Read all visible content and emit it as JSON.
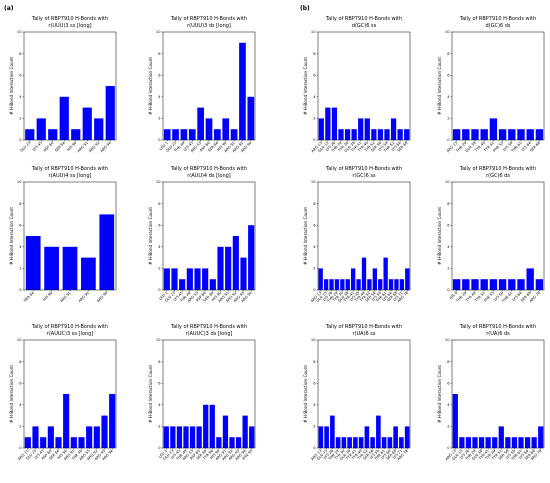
{
  "panels": [
    "(a)",
    "(b)"
  ],
  "chart_data": [
    {
      "type": "bar",
      "title": "Tally of RBP7910 H-Bonds with",
      "subtitle": "r(UUU)3 ss [long]",
      "ylabel": "# H-Bond Interaction Count",
      "color": "#0000ff",
      "ylim": [
        0,
        10
      ],
      "yticks": [
        0,
        2,
        4,
        6,
        8,
        10
      ],
      "categories": [
        "GLU 23",
        "LYS 45",
        "ASP 60",
        "SER 84",
        "HIS 90",
        "ARG 91",
        "ARG 92",
        "ARG 94"
      ],
      "values": [
        1,
        2,
        1,
        4,
        1,
        3,
        2,
        5
      ]
    },
    {
      "type": "bar",
      "title": "Tally of RBP7910 H-Bonds with",
      "subtitle": "r(UUU)3 ds [long]",
      "ylabel": "# H-Bond Interaction Count",
      "color": "#0000ff",
      "ylim": [
        0,
        10
      ],
      "yticks": [
        0,
        2,
        4,
        6,
        8,
        10
      ],
      "categories": [
        "LEU 1",
        "GLU 23",
        "THR 49",
        "LYS 45",
        "ARG 55",
        "ASP 60",
        "SER 84",
        "HIS 90",
        "ARG 91",
        "ARG 92",
        "ARG 94"
      ],
      "values": [
        1,
        1,
        1,
        1,
        3,
        2,
        1,
        2,
        1,
        9,
        4
      ]
    },
    {
      "type": "bar",
      "title": "Tally of RBP7910 H-Bonds with",
      "subtitle": "d(GC)6 ss",
      "ylabel": "# H-Bond Interaction Count",
      "color": "#0000ff",
      "ylim": [
        0,
        10
      ],
      "yticks": [
        0,
        2,
        4,
        6,
        8,
        10
      ],
      "categories": [
        "ARG 13",
        "GLN 15",
        "LYS 26",
        "THR 29",
        "TYR 30",
        "GLN 38",
        "TYR 41",
        "TYR 49",
        "TYR 52",
        "SER 56",
        "LYS 59",
        "THR 61",
        "LYS 64",
        "SER 68"
      ],
      "values": [
        2,
        3,
        3,
        1,
        1,
        1,
        2,
        2,
        1,
        1,
        1,
        2,
        1,
        1
      ]
    },
    {
      "type": "bar",
      "title": "Tally of RBP7910 H-Bonds with",
      "subtitle": "d(GC)6 ds",
      "ylabel": "# H-Bond Interaction Count",
      "color": "#0000ff",
      "ylim": [
        0,
        10
      ],
      "yticks": [
        0,
        2,
        4,
        6,
        8,
        10
      ],
      "categories": [
        "ARG 13",
        "THR 29",
        "GLN 38",
        "TYR 49",
        "TYR 52",
        "PHE 55",
        "LYS 59",
        "THR 61",
        "LYS 64",
        "SER 68"
      ],
      "values": [
        1,
        1,
        1,
        1,
        2,
        1,
        1,
        1,
        1,
        1
      ]
    },
    {
      "type": "bar",
      "title": "Tally of RBP7910 H-Bonds with",
      "subtitle": "r(AUU)4 ss [long]",
      "ylabel": "# H-Bond Interaction Count",
      "color": "#0000ff",
      "ylim": [
        0,
        10
      ],
      "yticks": [
        0,
        2,
        4,
        6,
        8,
        10
      ],
      "categories": [
        "SER 84",
        "HIS 90",
        "ARG 91",
        "ARG 92",
        "ARG 94"
      ],
      "values": [
        5,
        4,
        4,
        3,
        7
      ]
    },
    {
      "type": "bar",
      "title": "Tally of RBP7910 H-Bonds with",
      "subtitle": "r(AUU)4 ds [long]",
      "ylabel": "# H-Bond Interaction Count",
      "color": "#0000ff",
      "ylim": [
        0,
        10
      ],
      "yticks": [
        0,
        2,
        4,
        6,
        8,
        10
      ],
      "categories": [
        "LEU 1",
        "GLU 23",
        "LYS 45",
        "THR 49",
        "ARG 55",
        "ASP 60",
        "SER 84",
        "HIS 90",
        "ARG 91",
        "ARG 92",
        "ARG 93",
        "ARG 94"
      ],
      "values": [
        2,
        2,
        1,
        2,
        2,
        2,
        1,
        4,
        4,
        5,
        3,
        6
      ]
    },
    {
      "type": "bar",
      "title": "Tally of RBP7910 H-Bonds with",
      "subtitle": "r(GC)6 ss",
      "ylabel": "# H-Bond Interaction Count",
      "color": "#0000ff",
      "ylim": [
        0,
        10
      ],
      "yticks": [
        0,
        2,
        4,
        6,
        8,
        10
      ],
      "categories": [
        "ARG 13",
        "GLN 15",
        "LYS 26",
        "THR 29",
        "TYR 30",
        "GLN 38",
        "TYR 41",
        "LYS 45",
        "TYR 49",
        "TYR 52",
        "SER 56",
        "LYS 59",
        "THR 61",
        "LYS 64",
        "SER 68",
        "LYS 71",
        "ARG 78"
      ],
      "values": [
        2,
        1,
        1,
        1,
        1,
        1,
        2,
        1,
        3,
        1,
        2,
        1,
        3,
        1,
        1,
        1,
        2
      ]
    },
    {
      "type": "bar",
      "title": "Tally of RBP7910 H-Bonds with",
      "subtitle": "r(GC)6 ds",
      "ylabel": "# H-Bond Interaction Count",
      "color": "#0000ff",
      "ylim": [
        0,
        10
      ],
      "yticks": [
        0,
        2,
        4,
        6,
        8,
        10
      ],
      "categories": [
        "HIS 8",
        "THR 29",
        "TYR 49",
        "TYR 52",
        "PHE 55",
        "LYS 59",
        "THR 61",
        "LYS 64",
        "SER 68",
        "ARG 78"
      ],
      "values": [
        1,
        1,
        1,
        1,
        1,
        1,
        1,
        1,
        2,
        1
      ]
    },
    {
      "type": "bar",
      "title": "Tally of RBP7910 H-Bonds with",
      "subtitle": "r(AUUC)3 ss [long]",
      "ylabel": "# H-Bond Interaction Count",
      "color": "#0000ff",
      "ylim": [
        0,
        10
      ],
      "yticks": [
        0,
        2,
        4,
        6,
        8,
        10
      ],
      "categories": [
        "ARG 11",
        "GLU 23",
        "LYS 45",
        "ASP 60",
        "SER 84",
        "HIS 90",
        "ARG 91",
        "THR 49",
        "ARG 55",
        "ARG 92",
        "ARG 93",
        "ARG 94"
      ],
      "values": [
        1,
        2,
        1,
        2,
        1,
        5,
        1,
        1,
        2,
        2,
        3,
        5
      ]
    },
    {
      "type": "bar",
      "title": "Tally of RBP7910 H-Bonds with",
      "subtitle": "r(AUUC)3 ds [long]",
      "ylabel": "# H-Bond Interaction Count",
      "color": "#0000ff",
      "ylim": [
        0,
        10
      ],
      "yticks": [
        0,
        2,
        4,
        6,
        8,
        10
      ],
      "categories": [
        "LEU 1",
        "GLU 23",
        "LYS 45",
        "THR 49",
        "ARG 55",
        "ASP 60",
        "SER 84",
        "TYR 86",
        "HIS 90",
        "ARG 91",
        "ARG 92",
        "ARG 93",
        "ARG 94",
        "ASN 95"
      ],
      "values": [
        2,
        2,
        2,
        2,
        2,
        2,
        4,
        4,
        1,
        3,
        1,
        1,
        3,
        2
      ]
    },
    {
      "type": "bar",
      "title": "Tally of RBP7910 H-Bonds with",
      "subtitle": "r(UA)6 ss",
      "ylabel": "# H-Bond Interaction Count",
      "color": "#0000ff",
      "ylim": [
        0,
        10
      ],
      "yticks": [
        0,
        2,
        4,
        6,
        8,
        10
      ],
      "categories": [
        "ARG 13",
        "GLN 15",
        "LYS 26",
        "THR 29",
        "TYR 30",
        "GLN 38",
        "TYR 41",
        "TYR 49",
        "TYR 52",
        "SER 56",
        "LYS 59",
        "THR 61",
        "LYS 64",
        "SER 68",
        "LYS 71",
        "ARG 78"
      ],
      "values": [
        2,
        2,
        3,
        1,
        1,
        1,
        1,
        1,
        2,
        1,
        3,
        1,
        1,
        2,
        1,
        2
      ]
    },
    {
      "type": "bar",
      "title": "Tally of RBP7910 H-Bonds with",
      "subtitle": "r(UA)6 ds",
      "ylabel": "# H-Bond Interaction Count",
      "color": "#0000ff",
      "ylim": [
        0,
        10
      ],
      "yticks": [
        0,
        2,
        4,
        6,
        8,
        10
      ],
      "categories": [
        "ARG 13",
        "GLN 15",
        "LYS 26",
        "THR 29",
        "GLN 38",
        "TYR 41",
        "TYR 49",
        "TYR 52",
        "SER 56",
        "LYS 59",
        "THR 61",
        "LYS 64",
        "SER 68",
        "ARG 78"
      ],
      "values": [
        5,
        1,
        1,
        1,
        1,
        1,
        1,
        2,
        1,
        1,
        1,
        1,
        1,
        2
      ]
    }
  ]
}
